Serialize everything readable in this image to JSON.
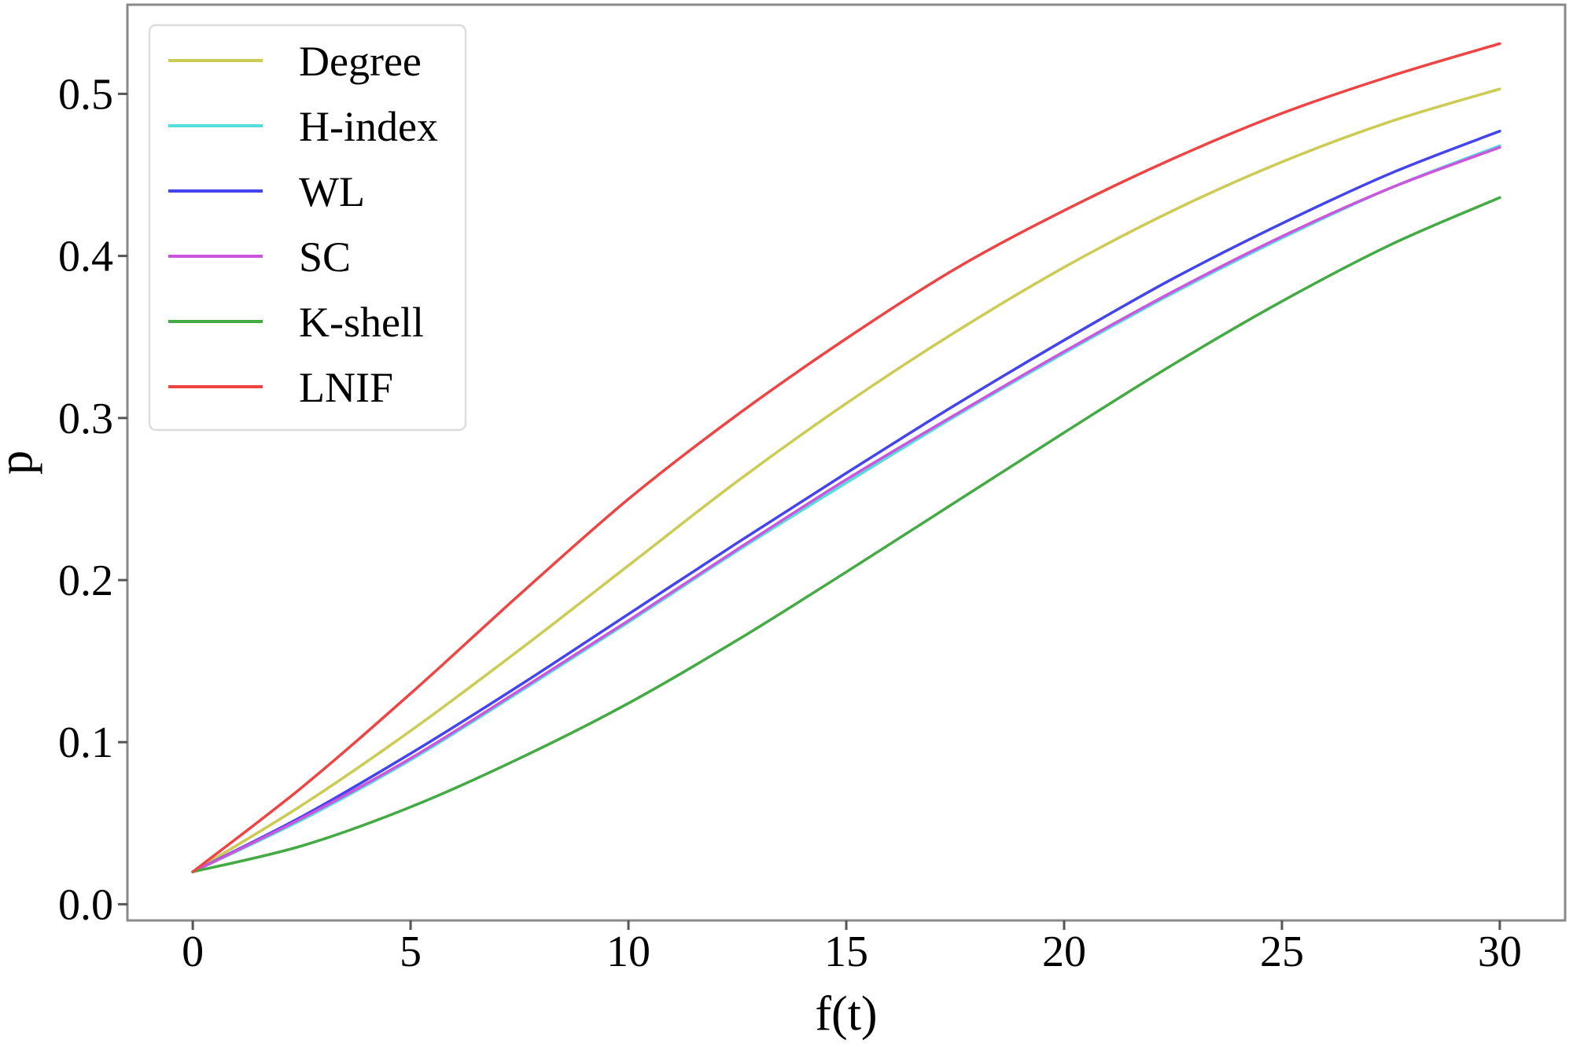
{
  "chart_data": {
    "type": "line",
    "title": "",
    "xlabel": "f(t)",
    "ylabel": "p",
    "xlim": [
      -1.5,
      31.5
    ],
    "ylim": [
      -0.01,
      0.555
    ],
    "xticks": [
      0,
      5,
      10,
      15,
      20,
      25,
      30
    ],
    "xtick_labels": [
      "0",
      "5",
      "10",
      "15",
      "20",
      "25",
      "30"
    ],
    "yticks": [
      0.0,
      0.1,
      0.2,
      0.3,
      0.4,
      0.5
    ],
    "ytick_labels": [
      "0.0",
      "0.1",
      "0.2",
      "0.3",
      "0.4",
      "0.5"
    ],
    "grid": false,
    "legend_position": "top-left",
    "x": [
      0,
      2.5,
      5,
      7.5,
      10,
      12.5,
      15,
      17.5,
      20,
      22.5,
      25,
      27.5,
      30
    ],
    "series": [
      {
        "name": "Degree",
        "color": "#cccc55",
        "values": [
          0.02,
          0.061,
          0.107,
          0.157,
          0.209,
          0.261,
          0.309,
          0.353,
          0.393,
          0.428,
          0.458,
          0.483,
          0.503
        ]
      },
      {
        "name": "H-index",
        "color": "#55dddd",
        "values": [
          0.02,
          0.052,
          0.089,
          0.131,
          0.174,
          0.218,
          0.26,
          0.301,
          0.34,
          0.377,
          0.411,
          0.442,
          0.468
        ]
      },
      {
        "name": "WL",
        "color": "#4444ee",
        "values": [
          0.02,
          0.054,
          0.093,
          0.135,
          0.179,
          0.223,
          0.266,
          0.308,
          0.348,
          0.386,
          0.42,
          0.451,
          0.477
        ]
      },
      {
        "name": "SC",
        "color": "#cc55dd",
        "values": [
          0.02,
          0.053,
          0.09,
          0.132,
          0.175,
          0.219,
          0.262,
          0.302,
          0.341,
          0.378,
          0.412,
          0.442,
          0.467
        ]
      },
      {
        "name": "K-shell",
        "color": "#44aa44",
        "values": [
          0.02,
          0.036,
          0.06,
          0.09,
          0.124,
          0.163,
          0.205,
          0.248,
          0.291,
          0.333,
          0.372,
          0.407,
          0.436
        ]
      },
      {
        "name": "LNIF",
        "color": "#ee4444",
        "values": [
          0.02,
          0.072,
          0.13,
          0.191,
          0.25,
          0.302,
          0.349,
          0.392,
          0.428,
          0.46,
          0.488,
          0.511,
          0.531
        ]
      }
    ]
  }
}
